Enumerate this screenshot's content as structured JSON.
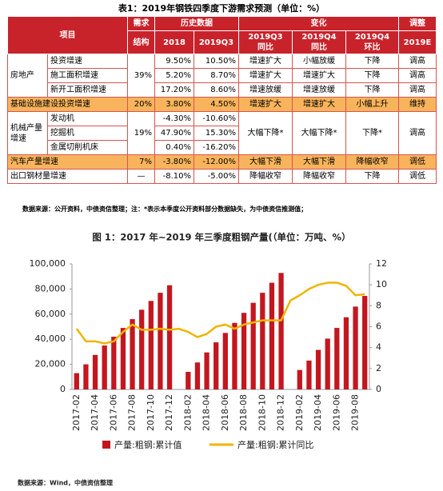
{
  "table": {
    "title": "表1：2019年钢铁四季度下游需求预测（单位：%）",
    "header1": [
      "项目",
      "需求",
      "历史数据",
      "变化",
      "调整"
    ],
    "header2": [
      "结构",
      "2018",
      "2019Q3",
      [
        "2019Q3",
        "同比"
      ],
      [
        "2019Q4",
        "同比"
      ],
      [
        "2019Q4",
        "环比"
      ],
      "2019E"
    ],
    "rows": [
      [
        "房地产",
        "投资增速",
        "39%",
        "9.50%",
        "10.50%",
        "增速扩大",
        "小幅放缓",
        "下降",
        "调高"
      ],
      [
        "施工面积增速",
        "5.20%",
        "8.70%",
        "增速扩大",
        "增速扩大",
        "下降",
        "调高"
      ],
      [
        "新开工面积增速",
        "17.20%",
        "8.60%",
        "增速放缓",
        "增速放缓",
        "下降",
        "调高"
      ],
      [
        "基础设施建设投资增速",
        "20%",
        "3.80%",
        "4.50%",
        "增速扩大",
        "增速扩大",
        "小幅上升",
        "维持"
      ],
      [
        "机械产量增速",
        "发动机",
        "19%",
        "-4.30%",
        "-10.60%",
        "大幅下降*",
        "大幅下降*",
        "下降*",
        "调高"
      ],
      [
        "挖掘机",
        "47.90%",
        "15.30%"
      ],
      [
        "金属切削机床",
        "0.40%",
        "-16.20%"
      ],
      [
        "汽车产量增速",
        "7%",
        "-3.80%",
        "-12.00%",
        "大幅下滑",
        "大幅下滑",
        "降幅收窄",
        "调低"
      ],
      [
        "出口钢材量增速",
        "—",
        "-8.10%",
        "-5.00%",
        "降幅收窄",
        "降幅收窄",
        "下降",
        "调低"
      ]
    ],
    "note": "数据来源：公开资料，中债资信整理；注：*表示本季度公开资料部分数据缺失，为中债资信推测值；"
  },
  "chart_data": {
    "type": "bar_line",
    "title": "图 1：2017 年~2019 年三季度粗钢产量(（单位：万吨、%）",
    "categories": [
      "2017-02",
      null,
      "2017-04",
      null,
      "2017-06",
      null,
      "2017-08",
      null,
      "2017-10",
      null,
      "2017-12",
      null,
      "2018-02",
      null,
      "2018-04",
      null,
      "2018-06",
      null,
      "2018-08",
      null,
      "2018-10",
      null,
      "2018-12",
      null,
      "2019-02",
      null,
      "2019-04",
      null,
      "2019-06",
      null,
      "2019-08",
      null
    ],
    "series": [
      {
        "name": "产量:粗钢:累计值",
        "type": "bar",
        "color": "#c3171f",
        "values": [
          13000,
          20000,
          27500,
          35000,
          42000,
          49000,
          56000,
          63500,
          70500,
          77000,
          83000,
          null,
          14000,
          21500,
          29500,
          37500,
          45000,
          53000,
          61000,
          69000,
          77000,
          85000,
          92800,
          null,
          15500,
          23000,
          31500,
          40500,
          49000,
          57500,
          66000,
          74500
        ]
      },
      {
        "name": "产量:粗钢:累计同比",
        "type": "line",
        "axis": "y2",
        "color": "#f0b400",
        "values": [
          5.8,
          4.6,
          4.6,
          4.4,
          4.6,
          5.5,
          6.2,
          5.7,
          5.7,
          5.8,
          5.7,
          5.8,
          5.5,
          5.0,
          5.3,
          6.0,
          6.2,
          5.8,
          6.2,
          6.4,
          6.6,
          6.6,
          6.6,
          8.5,
          9.0,
          9.6,
          10.0,
          10.2,
          10.2,
          9.9,
          9.0,
          9.1
        ]
      }
    ],
    "ylim": [
      0,
      100000
    ],
    "yticks": [
      0,
      {
        "value": 20000,
        "label": "20,000"
      },
      {
        "value": 40000,
        "label": "40,000"
      },
      {
        "value": 60000,
        "label": "60,000"
      },
      {
        "value": 80000,
        "label": "80,000"
      },
      {
        "value": 100000,
        "label": "100,000"
      }
    ],
    "y2lim": [
      0,
      12
    ],
    "y2ticks": [
      0,
      2,
      4,
      6,
      8,
      10,
      12
    ],
    "grid": false,
    "source": "数据来源：Wind，中债资信整理"
  }
}
